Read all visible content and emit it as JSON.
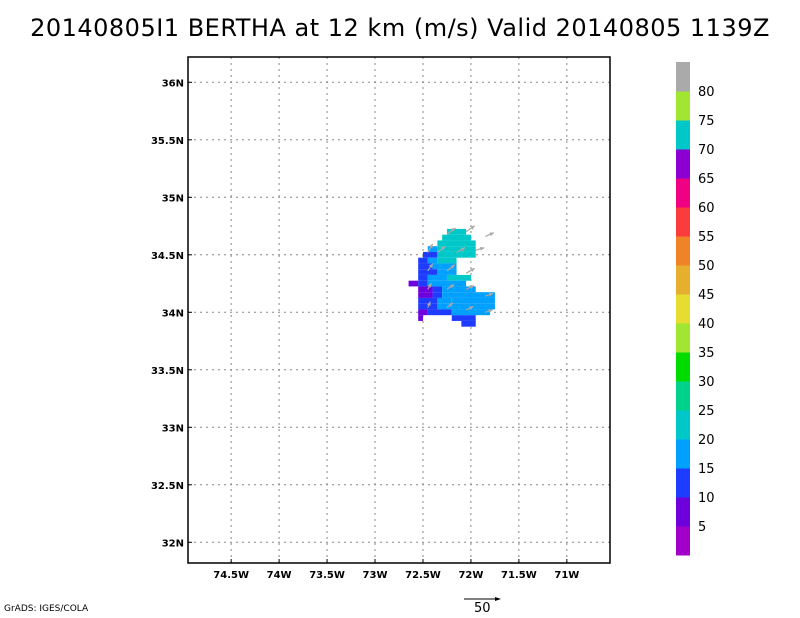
{
  "title": "20140805I1 BERTHA at 12 km (m/s) Valid 20140805 1139Z",
  "credit": "GrADS: IGES/COLA",
  "vector_reference": {
    "label": "50",
    "value": 50
  },
  "map": {
    "lon_range": [
      -74.95,
      -70.55
    ],
    "lat_range": [
      31.82,
      36.22
    ],
    "grid": true,
    "x_ticks": [
      {
        "value": -74.5,
        "label": "74.5W"
      },
      {
        "value": -74.0,
        "label": "74W"
      },
      {
        "value": -73.5,
        "label": "73.5W"
      },
      {
        "value": -73.0,
        "label": "73W"
      },
      {
        "value": -72.5,
        "label": "72.5W"
      },
      {
        "value": -72.0,
        "label": "72W"
      },
      {
        "value": -71.5,
        "label": "71.5W"
      },
      {
        "value": -71.0,
        "label": "71W"
      }
    ],
    "y_ticks": [
      {
        "value": 36.0,
        "label": "36N"
      },
      {
        "value": 35.5,
        "label": "35.5N"
      },
      {
        "value": 35.0,
        "label": "35N"
      },
      {
        "value": 34.5,
        "label": "34.5N"
      },
      {
        "value": 34.0,
        "label": "34N"
      },
      {
        "value": 33.5,
        "label": "33.5N"
      },
      {
        "value": 33.0,
        "label": "33N"
      },
      {
        "value": 32.5,
        "label": "32.5N"
      },
      {
        "value": 32.0,
        "label": "32N"
      }
    ]
  },
  "colorbar": {
    "labels": [
      "5",
      "10",
      "15",
      "20",
      "25",
      "30",
      "35",
      "40",
      "45",
      "50",
      "55",
      "60",
      "65",
      "70",
      "75",
      "80"
    ],
    "colors": [
      "#a000c8",
      "#6e00dc",
      "#1e3cff",
      "#00a0ff",
      "#00c8c8",
      "#00d28c",
      "#00dc00",
      "#a0e632",
      "#e6dc32",
      "#e6af2d",
      "#f08228",
      "#fa3c3c",
      "#f00082",
      "#8c00d2",
      "#00c8c8",
      "#a0e632",
      "#aaaaaa"
    ]
  },
  "chart_data": {
    "type": "heatmap",
    "title": "20140805I1 BERTHA at 12 km (m/s) Valid 20140805 1139Z",
    "units": "m/s",
    "x_axis": "longitude",
    "y_axis": "latitude",
    "xlim": [
      -74.95,
      -70.55
    ],
    "ylim": [
      31.82,
      36.22
    ],
    "cell_size_deg": 0.05,
    "cells": [
      {
        "lat": 34.7,
        "lon_start": -72.25,
        "lon_end": -72.05,
        "value": 20
      },
      {
        "lat": 34.65,
        "lon_start": -72.3,
        "lon_end": -72.0,
        "value": 20
      },
      {
        "lat": 34.6,
        "lon_start": -72.35,
        "lon_end": -71.95,
        "value": 20
      },
      {
        "lat": 34.55,
        "lon_start": -72.45,
        "lon_end": -72.35,
        "value": 15
      },
      {
        "lat": 34.55,
        "lon_start": -72.35,
        "lon_end": -71.95,
        "value": 20
      },
      {
        "lat": 34.5,
        "lon_start": -72.5,
        "lon_end": -72.35,
        "value": 10
      },
      {
        "lat": 34.5,
        "lon_start": -72.35,
        "lon_end": -72.1,
        "value": 20
      },
      {
        "lat": 34.5,
        "lon_start": -72.1,
        "lon_end": -71.95,
        "value": 20
      },
      {
        "lat": 34.45,
        "lon_start": -72.55,
        "lon_end": -72.45,
        "value": 10
      },
      {
        "lat": 34.45,
        "lon_start": -72.45,
        "lon_end": -72.35,
        "value": 15
      },
      {
        "lat": 34.45,
        "lon_start": -72.35,
        "lon_end": -72.15,
        "value": 20
      },
      {
        "lat": 34.4,
        "lon_start": -72.55,
        "lon_end": -72.4,
        "value": 10
      },
      {
        "lat": 34.4,
        "lon_start": -72.4,
        "lon_end": -72.15,
        "value": 15
      },
      {
        "lat": 34.35,
        "lon_start": -72.55,
        "lon_end": -72.35,
        "value": 10
      },
      {
        "lat": 34.35,
        "lon_start": -72.35,
        "lon_end": -72.15,
        "value": 15
      },
      {
        "lat": 34.3,
        "lon_start": -72.55,
        "lon_end": -72.45,
        "value": 10
      },
      {
        "lat": 34.3,
        "lon_start": -72.45,
        "lon_end": -72.25,
        "value": 15
      },
      {
        "lat": 34.3,
        "lon_start": -72.25,
        "lon_end": -72.0,
        "value": 20
      },
      {
        "lat": 34.25,
        "lon_start": -72.65,
        "lon_end": -72.55,
        "value": 5
      },
      {
        "lat": 34.25,
        "lon_start": -72.55,
        "lon_end": -72.45,
        "value": 10
      },
      {
        "lat": 34.25,
        "lon_start": -72.45,
        "lon_end": -72.05,
        "value": 15
      },
      {
        "lat": 34.2,
        "lon_start": -72.55,
        "lon_end": -72.4,
        "value": 5
      },
      {
        "lat": 34.2,
        "lon_start": -72.4,
        "lon_end": -72.3,
        "value": 10
      },
      {
        "lat": 34.2,
        "lon_start": -72.3,
        "lon_end": -71.95,
        "value": 15
      },
      {
        "lat": 34.15,
        "lon_start": -72.55,
        "lon_end": -72.4,
        "value": 5
      },
      {
        "lat": 34.15,
        "lon_start": -72.4,
        "lon_end": -72.3,
        "value": 10
      },
      {
        "lat": 34.15,
        "lon_start": -72.3,
        "lon_end": -71.75,
        "value": 15
      },
      {
        "lat": 34.1,
        "lon_start": -72.55,
        "lon_end": -72.35,
        "value": 10
      },
      {
        "lat": 34.1,
        "lon_start": -72.35,
        "lon_end": -72.2,
        "value": 15
      },
      {
        "lat": 34.1,
        "lon_start": -72.2,
        "lon_end": -71.75,
        "value": 15
      },
      {
        "lat": 34.05,
        "lon_start": -72.55,
        "lon_end": -72.35,
        "value": 10
      },
      {
        "lat": 34.05,
        "lon_start": -72.35,
        "lon_end": -71.75,
        "value": 15
      },
      {
        "lat": 34.0,
        "lon_start": -72.55,
        "lon_end": -72.45,
        "value": 5
      },
      {
        "lat": 34.0,
        "lon_start": -72.45,
        "lon_end": -72.2,
        "value": 10
      },
      {
        "lat": 34.0,
        "lon_start": -72.2,
        "lon_end": -71.8,
        "value": 15
      },
      {
        "lat": 33.95,
        "lon_start": -72.55,
        "lon_end": -72.5,
        "value": 5
      },
      {
        "lat": 33.95,
        "lon_start": -72.2,
        "lon_end": -71.95,
        "value": 10
      },
      {
        "lat": 33.9,
        "lon_start": -72.1,
        "lon_end": -71.95,
        "value": 10
      }
    ],
    "vectors": [
      {
        "lon": -72.45,
        "lat": 34.52,
        "u": 8,
        "v": 14
      },
      {
        "lon": -72.25,
        "lat": 34.68,
        "u": 14,
        "v": 10
      },
      {
        "lon": -72.05,
        "lat": 34.7,
        "u": 14,
        "v": 10
      },
      {
        "lon": -71.85,
        "lat": 34.66,
        "u": 14,
        "v": 6
      },
      {
        "lon": -72.35,
        "lat": 34.52,
        "u": 13,
        "v": 10
      },
      {
        "lon": -72.15,
        "lat": 34.52,
        "u": 14,
        "v": 8
      },
      {
        "lon": -71.95,
        "lat": 34.54,
        "u": 14,
        "v": 4
      },
      {
        "lon": -72.45,
        "lat": 34.36,
        "u": 8,
        "v": 12
      },
      {
        "lon": -72.25,
        "lat": 34.36,
        "u": 13,
        "v": 10
      },
      {
        "lon": -72.05,
        "lat": 34.34,
        "u": 14,
        "v": 8
      },
      {
        "lon": -72.45,
        "lat": 34.2,
        "u": 6,
        "v": 10
      },
      {
        "lon": -72.25,
        "lat": 34.2,
        "u": 12,
        "v": 8
      },
      {
        "lon": -72.05,
        "lat": 34.2,
        "u": 13,
        "v": 6
      },
      {
        "lon": -71.85,
        "lat": 34.14,
        "u": 13,
        "v": 5
      },
      {
        "lon": -72.45,
        "lat": 34.04,
        "u": 4,
        "v": 10
      },
      {
        "lon": -72.25,
        "lat": 34.04,
        "u": 10,
        "v": 8
      },
      {
        "lon": -72.05,
        "lat": 34.02,
        "u": 12,
        "v": 6
      },
      {
        "lon": -71.85,
        "lat": 34.0,
        "u": 12,
        "v": 4
      }
    ]
  }
}
